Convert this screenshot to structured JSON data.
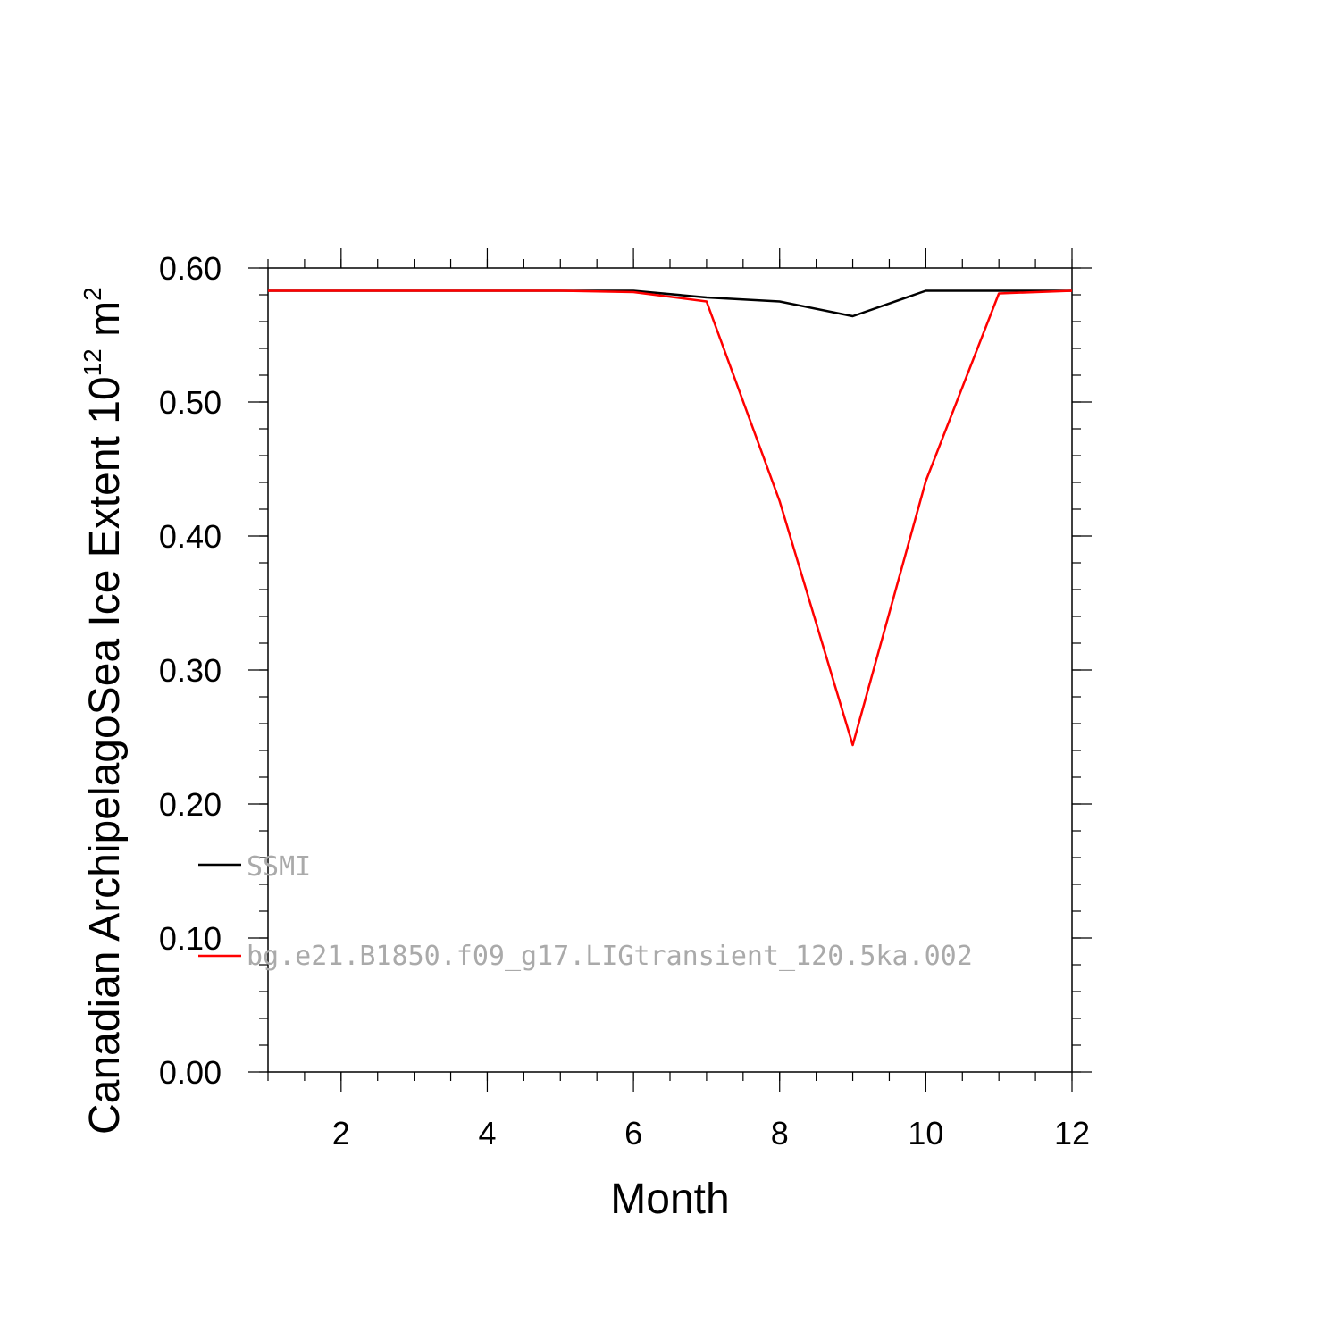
{
  "chart_data": {
    "type": "line",
    "title": "",
    "xlabel": "Month",
    "ylabel_main": "Canadian ArchipelagoSea Ice Extent 10",
    "ylabel_exp1": "12",
    "ylabel_unit": " m",
    "ylabel_exp2": "2",
    "xlim": [
      1,
      12
    ],
    "ylim": [
      0,
      0.6
    ],
    "x": [
      1,
      2,
      3,
      4,
      5,
      6,
      7,
      8,
      9,
      10,
      11,
      12
    ],
    "xticks": [
      2,
      4,
      6,
      8,
      10,
      12
    ],
    "xtick_labels": [
      "2",
      "4",
      "6",
      "8",
      "10",
      "12"
    ],
    "yticks": [
      0,
      0.1,
      0.2,
      0.3,
      0.4,
      0.5,
      0.6
    ],
    "ytick_labels": [
      "0.00",
      "0.10",
      "0.20",
      "0.30",
      "0.40",
      "0.50",
      "0.60"
    ],
    "grid": false,
    "legend_position": "lower-left",
    "series": [
      {
        "name": "SSMI",
        "color": "#000000",
        "values": [
          0.583,
          0.583,
          0.583,
          0.583,
          0.583,
          0.583,
          0.578,
          0.575,
          0.564,
          0.583,
          0.583,
          0.583
        ]
      },
      {
        "name": "bg.e21.B1850.f09_g17.LIGtransient_120.5ka.002",
        "color": "#ff0000",
        "values": [
          0.583,
          0.583,
          0.583,
          0.583,
          0.583,
          0.582,
          0.575,
          0.426,
          0.244,
          0.441,
          0.581,
          0.583
        ]
      }
    ]
  }
}
